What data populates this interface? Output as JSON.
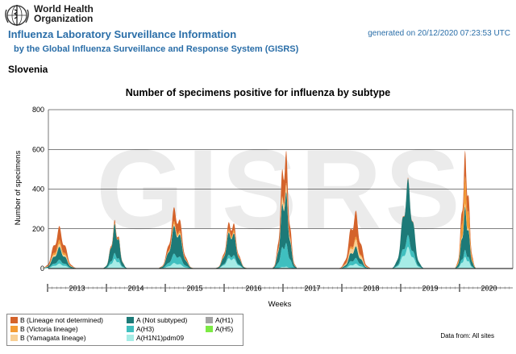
{
  "header": {
    "org_name": "World Health Organization",
    "title": "Influenza Laboratory Surveillance Information",
    "subtitle": "by the Global Influenza Surveillance and Response System (GISRS)",
    "generated": "generated on 20/12/2020 07:23:53 UTC",
    "country": "Slovenia"
  },
  "watermark": "GISRS",
  "footer": {
    "data_source": "Data from: All sites"
  },
  "colors": {
    "b_lineage_not_determined": "#d4632b",
    "b_victoria": "#f39c35",
    "b_yamagata": "#f8cf93",
    "a_not_subtyped": "#1d7a78",
    "a_h3": "#3fbfbf",
    "a_h1n1pdm09": "#a6ece6",
    "a_h1": "#a3a3a3",
    "a_h5": "#7cea44"
  },
  "chart_data": {
    "type": "area",
    "stacked": true,
    "title": "Number of specimens positive for influenza by subtype",
    "xlabel": "Weeks",
    "ylabel": "Number of specimens",
    "ylim": [
      0,
      800
    ],
    "yticks": [
      0,
      200,
      400,
      600,
      800
    ],
    "grid": true,
    "legend_position": "bottom-left",
    "year_labels": [
      "2013",
      "2014",
      "2015",
      "2016",
      "2017",
      "2018",
      "2019",
      "2020"
    ],
    "legend": [
      {
        "key": "b_lineage_not_determined",
        "label": "B (Lineage not determined)"
      },
      {
        "key": "b_victoria",
        "label": "B (Victoria lineage)"
      },
      {
        "key": "b_yamagata",
        "label": "B (Yamagata lineage)"
      },
      {
        "key": "a_not_subtyped",
        "label": "A (Not subtyped)"
      },
      {
        "key": "a_h3",
        "label": "A(H3)"
      },
      {
        "key": "a_h1n1pdm09",
        "label": "A(H1N1)pdm09"
      },
      {
        "key": "a_h1",
        "label": "A(H1)"
      },
      {
        "key": "a_h5",
        "label": "A(H5)"
      }
    ],
    "seasons": [
      {
        "year_index": 0,
        "peak_year_fraction": 0.2,
        "width_weeks": 5,
        "totals": {
          "a_h1n1pdm09": 25,
          "a_h3": 20,
          "a_not_subtyped": 65,
          "b_yamagata": 15,
          "b_victoria": 20,
          "b_lineage_not_determined": 70
        }
      },
      {
        "year_index": 1,
        "peak_year_fraction": 0.15,
        "width_weeks": 3.5,
        "totals": {
          "a_h1n1pdm09": 50,
          "a_h3": 30,
          "a_not_subtyped": 150,
          "b_yamagata": 0,
          "b_victoria": 5,
          "b_lineage_not_determined": 15
        }
      },
      {
        "year_index": 2,
        "peak_year_fraction": 0.18,
        "width_weeks": 5,
        "totals": {
          "a_h1n1pdm09": 30,
          "a_h3": 50,
          "a_not_subtyped": 150,
          "b_yamagata": 10,
          "b_victoria": 15,
          "b_lineage_not_determined": 75
        }
      },
      {
        "year_index": 3,
        "peak_year_fraction": 0.12,
        "width_weeks": 4.5,
        "totals": {
          "a_h1n1pdm09": 60,
          "a_h3": 20,
          "a_not_subtyped": 130,
          "b_yamagata": 5,
          "b_victoria": 15,
          "b_lineage_not_determined": 40
        }
      },
      {
        "year_index": 4,
        "peak_year_fraction": 0.03,
        "width_weeks": 3.5,
        "totals": {
          "a_h1n1pdm09": 10,
          "a_h3": 130,
          "a_not_subtyped": 280,
          "b_yamagata": 40,
          "b_victoria": 10,
          "b_lineage_not_determined": 175
        }
      },
      {
        "year_index": 5,
        "peak_year_fraction": 0.22,
        "width_weeks": 4.5,
        "totals": {
          "a_h1n1pdm09": 25,
          "a_h3": 30,
          "a_not_subtyped": 60,
          "b_yamagata": 35,
          "b_victoria": 15,
          "b_lineage_not_determined": 135
        }
      },
      {
        "year_index": 6,
        "peak_year_fraction": 0.12,
        "width_weeks": 4.5,
        "totals": {
          "a_h1n1pdm09": 110,
          "a_h3": 60,
          "a_not_subtyped": 285,
          "b_yamagata": 0,
          "b_victoria": 0,
          "b_lineage_not_determined": 5
        }
      },
      {
        "year_index": 7,
        "peak_year_fraction": 0.1,
        "width_weeks": 3,
        "totals": {
          "a_h1n1pdm09": 60,
          "a_h3": 35,
          "a_not_subtyped": 220,
          "b_yamagata": 15,
          "b_victoria": 140,
          "b_lineage_not_determined": 130
        }
      }
    ]
  }
}
